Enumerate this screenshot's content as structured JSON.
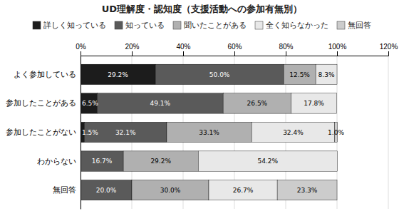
{
  "chart_data": {
    "type": "bar",
    "orientation": "horizontal",
    "stacked": true,
    "title": "UD理解度・認知度（支援活動への参加有無別）",
    "categories": [
      "よく参加している",
      "参加したことがある",
      "参加したことがない",
      "わからない",
      "無回答"
    ],
    "series": [
      {
        "name": "詳しく知っている",
        "color": "#1c1c1c",
        "values": [
          29.2,
          6.5,
          1.5,
          0.0,
          0.0
        ],
        "value_labels": [
          "29.2%",
          "6.5%",
          "1.5%",
          null,
          null
        ]
      },
      {
        "name": "知っている",
        "color": "#5a5a5a",
        "values": [
          50.0,
          49.1,
          32.1,
          16.7,
          20.0
        ],
        "value_labels": [
          "50.0%",
          "49.1%",
          "32.1%",
          "16.7%",
          "20.0%"
        ]
      },
      {
        "name": "聞いたことがある",
        "color": "#b0b0b0",
        "values": [
          12.5,
          26.5,
          33.1,
          29.2,
          30.0
        ],
        "value_labels": [
          "12.5%",
          "26.5%",
          "33.1%",
          "29.2%",
          "30.0%"
        ]
      },
      {
        "name": "全く知らなかった",
        "color": "#e8e8e8",
        "values": [
          8.3,
          17.8,
          32.4,
          54.2,
          26.7
        ],
        "value_labels": [
          "8.3%",
          "17.8%",
          "32.4%",
          "54.2%",
          "26.7%"
        ]
      },
      {
        "name": "無回答",
        "color": "#cccccc",
        "values": [
          0.0,
          0.0,
          1.0,
          0.0,
          23.3
        ],
        "value_labels": [
          null,
          null,
          "1.0%",
          null,
          "23.3%"
        ]
      }
    ],
    "xlim": [
      0,
      120
    ],
    "xticks": [
      {
        "value": 0,
        "label": "0%"
      },
      {
        "value": 20,
        "label": "20%"
      },
      {
        "value": 40,
        "label": "40%"
      },
      {
        "value": 60,
        "label": "60%"
      },
      {
        "value": 80,
        "label": "80%"
      },
      {
        "value": 100,
        "label": "100%"
      },
      {
        "value": 120,
        "label": "120%"
      }
    ],
    "grid": true,
    "legend": "top",
    "data_labels": true
  }
}
